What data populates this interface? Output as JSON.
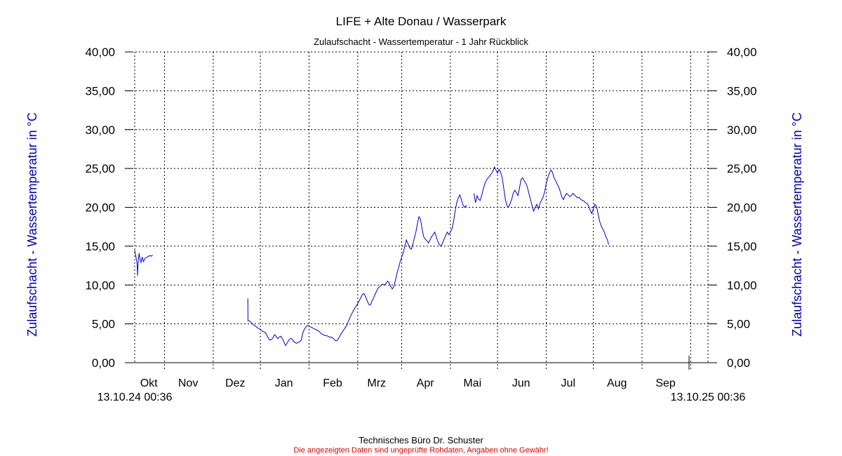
{
  "chart_data": {
    "type": "line",
    "title": "LIFE + Alte Donau / Wasserpark",
    "subtitle": "Zulaufschacht - Wassertemperatur - 1 Jahr Rückblick",
    "ylabel_left": "Zulaufschacht - Wassertemperatur in °C",
    "ylabel_right": "Zulaufschacht - Wassertemperatur in °C",
    "ylim": [
      0,
      40
    ],
    "yticks": [
      "0,00",
      "5,00",
      "10,00",
      "15,00",
      "20,00",
      "25,00",
      "30,00",
      "35,00",
      "40,00"
    ],
    "x_start_label": "13.10.24 00:36",
    "x_end_label": "13.10.25 00:36",
    "x_range_days": [
      0,
      365
    ],
    "month_labels": [
      {
        "label": "Okt",
        "day": 9
      },
      {
        "label": "Nov",
        "day": 34
      },
      {
        "label": "Dez",
        "day": 64
      },
      {
        "label": "Jan",
        "day": 95
      },
      {
        "label": "Feb",
        "day": 126
      },
      {
        "label": "Mrz",
        "day": 154
      },
      {
        "label": "Apr",
        "day": 185
      },
      {
        "label": "Mai",
        "day": 215
      },
      {
        "label": "Jun",
        "day": 246
      },
      {
        "label": "Jul",
        "day": 276
      },
      {
        "label": "Aug",
        "day": 307
      },
      {
        "label": "Sep",
        "day": 338
      }
    ],
    "grid_days": [
      19,
      50,
      80,
      111,
      142,
      170,
      201,
      231,
      262,
      292,
      323,
      354
    ],
    "grid": true,
    "series": [
      {
        "color": "#0000c8",
        "segments": [
          [
            [
              0,
              14.5
            ],
            [
              0.6,
              13.8
            ],
            [
              1.2,
              13.2
            ],
            [
              1.6,
              12.4
            ],
            [
              1.8,
              11.2
            ],
            [
              2.2,
              13.0
            ],
            [
              2.8,
              14.1
            ],
            [
              3.4,
              13.3
            ],
            [
              4.0,
              12.9
            ],
            [
              4.8,
              13.6
            ],
            [
              5.6,
              13.0
            ],
            [
              6.4,
              13.4
            ],
            [
              7.2,
              13.5
            ],
            [
              8.0,
              13.6
            ],
            [
              8.8,
              13.7
            ],
            [
              9.6,
              13.8
            ],
            [
              10.4,
              13.7
            ],
            [
              11.0,
              13.8
            ],
            [
              11.5,
              13.8
            ]
          ],
          [
            [
              72.0,
              8.3
            ],
            [
              72.1,
              5.4
            ],
            [
              73,
              5.4
            ],
            [
              74,
              5.2
            ],
            [
              75,
              5.0
            ],
            [
              76,
              4.8
            ],
            [
              77,
              4.7
            ],
            [
              78,
              4.5
            ],
            [
              79,
              4.4
            ],
            [
              80,
              4.3
            ],
            [
              81,
              4.1
            ],
            [
              82,
              4.0
            ],
            [
              83,
              3.9
            ],
            [
              84,
              3.6
            ],
            [
              85,
              3.2
            ],
            [
              86,
              2.9
            ],
            [
              87,
              3.0
            ],
            [
              88,
              3.2
            ],
            [
              89,
              3.6
            ],
            [
              90,
              3.4
            ],
            [
              91,
              3.1
            ],
            [
              92,
              3.3
            ],
            [
              93,
              3.4
            ],
            [
              94,
              3.1
            ],
            [
              95,
              2.7
            ],
            [
              96,
              2.2
            ],
            [
              97,
              2.5
            ],
            [
              98,
              2.9
            ],
            [
              99,
              3.1
            ],
            [
              100,
              3.1
            ],
            [
              101,
              2.8
            ],
            [
              102,
              2.6
            ],
            [
              103,
              2.5
            ],
            [
              104,
              2.6
            ],
            [
              105,
              2.7
            ],
            [
              106,
              2.9
            ],
            [
              107,
              3.8
            ],
            [
              108,
              4.3
            ],
            [
              109,
              4.6
            ],
            [
              110,
              4.8
            ],
            [
              111,
              4.7
            ],
            [
              112,
              4.6
            ],
            [
              113,
              4.5
            ],
            [
              114,
              4.4
            ],
            [
              115,
              4.3
            ],
            [
              116,
              4.2
            ],
            [
              117,
              4.1
            ],
            [
              118,
              3.9
            ],
            [
              119,
              3.7
            ],
            [
              120,
              3.6
            ],
            [
              121,
              3.5
            ],
            [
              122,
              3.5
            ],
            [
              123,
              3.4
            ],
            [
              124,
              3.3
            ],
            [
              125,
              3.3
            ],
            [
              126,
              3.2
            ],
            [
              127,
              3.0
            ],
            [
              128,
              2.8
            ],
            [
              129,
              2.9
            ],
            [
              130,
              3.2
            ],
            [
              131,
              3.6
            ],
            [
              132,
              3.9
            ],
            [
              133,
              4.2
            ],
            [
              134,
              4.5
            ],
            [
              135,
              4.8
            ],
            [
              136,
              5.3
            ],
            [
              137,
              5.8
            ],
            [
              138,
              6.2
            ],
            [
              139,
              6.6
            ],
            [
              140,
              7.0
            ],
            [
              141,
              7.3
            ],
            [
              142,
              7.6
            ],
            [
              143,
              8.0
            ],
            [
              144,
              8.4
            ],
            [
              145,
              8.8
            ],
            [
              146,
              8.9
            ],
            [
              147,
              8.5
            ],
            [
              148,
              8.0
            ],
            [
              149,
              7.5
            ],
            [
              150,
              7.4
            ],
            [
              151,
              7.9
            ],
            [
              152,
              8.3
            ],
            [
              153,
              8.8
            ],
            [
              154,
              9.2
            ],
            [
              155,
              9.6
            ],
            [
              156,
              9.8
            ],
            [
              157,
              10.0
            ],
            [
              158,
              10.1
            ],
            [
              159,
              10.0
            ],
            [
              160,
              10.2
            ],
            [
              161,
              10.5
            ],
            [
              162,
              10.3
            ],
            [
              163,
              9.8
            ],
            [
              164,
              9.5
            ],
            [
              165,
              9.8
            ],
            [
              166,
              10.6
            ],
            [
              167,
              11.5
            ],
            [
              168,
              12.2
            ],
            [
              169,
              13.0
            ],
            [
              170,
              13.6
            ],
            [
              171,
              14.2
            ],
            [
              172,
              15.0
            ],
            [
              173,
              15.8
            ],
            [
              174,
              15.3
            ],
            [
              175,
              14.8
            ],
            [
              176,
              14.6
            ],
            [
              177,
              15.2
            ],
            [
              178,
              16.0
            ],
            [
              179,
              16.8
            ],
            [
              180,
              17.9
            ],
            [
              181,
              18.8
            ],
            [
              182,
              18.4
            ],
            [
              183,
              17.2
            ],
            [
              184,
              16.2
            ],
            [
              185,
              15.9
            ],
            [
              186,
              15.7
            ],
            [
              187,
              15.4
            ],
            [
              188,
              15.8
            ],
            [
              189,
              16.2
            ],
            [
              190,
              16.5
            ],
            [
              191,
              16.8
            ],
            [
              192,
              16.2
            ],
            [
              193,
              15.6
            ],
            [
              194,
              15.2
            ],
            [
              195,
              15.0
            ],
            [
              196,
              15.4
            ],
            [
              197,
              15.9
            ],
            [
              198,
              16.4
            ],
            [
              199,
              16.8
            ],
            [
              200,
              16.5
            ],
            [
              201,
              16.8
            ],
            [
              202,
              17.2
            ],
            [
              203,
              18.2
            ],
            [
              204,
              19.5
            ],
            [
              205,
              20.6
            ],
            [
              206,
              21.2
            ],
            [
              207,
              21.6
            ],
            [
              208,
              21.0
            ],
            [
              209,
              20.3
            ],
            [
              210,
              20.0
            ],
            [
              211,
              20.2
            ],
            [
              211.5,
              20.2
            ]
          ],
          [
            [
              216,
              21.8
            ],
            [
              217,
              20.6
            ],
            [
              218,
              21.5
            ],
            [
              219,
              21.0
            ],
            [
              220,
              20.9
            ],
            [
              221,
              21.6
            ],
            [
              222,
              22.4
            ],
            [
              223,
              23.1
            ],
            [
              224,
              23.5
            ],
            [
              225,
              23.8
            ],
            [
              226,
              24.0
            ],
            [
              227,
              24.3
            ],
            [
              228,
              24.6
            ],
            [
              229,
              25.2
            ],
            [
              230,
              24.8
            ],
            [
              231,
              24.4
            ],
            [
              232,
              24.9
            ],
            [
              233,
              24.5
            ],
            [
              234,
              23.8
            ],
            [
              235,
              22.4
            ],
            [
              236,
              21.0
            ],
            [
              237,
              20.2
            ],
            [
              238,
              20.0
            ],
            [
              239,
              20.5
            ],
            [
              240,
              21.0
            ],
            [
              241,
              21.8
            ],
            [
              242,
              22.2
            ],
            [
              243,
              21.9
            ],
            [
              244,
              21.5
            ],
            [
              245,
              22.5
            ],
            [
              246,
              23.6
            ],
            [
              247,
              23.8
            ],
            [
              248,
              23.4
            ],
            [
              249,
              23.1
            ],
            [
              250,
              22.6
            ],
            [
              251,
              21.8
            ],
            [
              252,
              21.0
            ],
            [
              253,
              20.2
            ],
            [
              254,
              19.5
            ],
            [
              255,
              20.0
            ],
            [
              256,
              20.4
            ],
            [
              257,
              19.8
            ],
            [
              258,
              20.5
            ],
            [
              259,
              20.9
            ],
            [
              260,
              21.3
            ],
            [
              261,
              22.0
            ],
            [
              262,
              23.0
            ],
            [
              263,
              23.8
            ],
            [
              264,
              24.4
            ],
            [
              265,
              24.8
            ],
            [
              266,
              24.5
            ],
            [
              267,
              23.8
            ],
            [
              268,
              23.4
            ],
            [
              269,
              23.0
            ],
            [
              270,
              22.6
            ],
            [
              271,
              22.0
            ],
            [
              272,
              21.3
            ],
            [
              273,
              21.0
            ],
            [
              274,
              21.5
            ],
            [
              275,
              21.8
            ],
            [
              276,
              21.6
            ],
            [
              277,
              21.4
            ],
            [
              278,
              21.5
            ],
            [
              279,
              21.8
            ],
            [
              280,
              21.6
            ],
            [
              281,
              21.4
            ],
            [
              282,
              21.2
            ],
            [
              283,
              21.3
            ],
            [
              284,
              21.0
            ],
            [
              285,
              20.9
            ],
            [
              286,
              20.8
            ],
            [
              287,
              20.6
            ],
            [
              288,
              20.5
            ],
            [
              289,
              20.2
            ],
            [
              290,
              19.6
            ],
            [
              291,
              19.2
            ],
            [
              292,
              19.8
            ],
            [
              293,
              20.4
            ],
            [
              294,
              20.1
            ],
            [
              295,
              19.2
            ],
            [
              296,
              18.2
            ],
            [
              297,
              17.6
            ],
            [
              298,
              17.2
            ],
            [
              299,
              16.8
            ],
            [
              300,
              16.2
            ],
            [
              301,
              15.8
            ],
            [
              301.8,
              15.2
            ]
          ]
        ]
      }
    ]
  },
  "footer": {
    "credit": "Technisches Büro Dr. Schuster",
    "disclaimer": "Die angezeigten Daten sind ungeprüfte Rohdaten, Angaben ohne Gewähr!"
  }
}
